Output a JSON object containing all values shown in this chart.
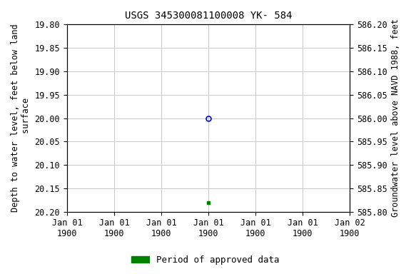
{
  "title": "USGS 345300081100008 YK- 584",
  "ylabel_left": "Depth to water level, feet below land\n surface",
  "ylabel_right": "Groundwater level above NAVD 1988, feet",
  "ylim_left": [
    19.8,
    20.2
  ],
  "ylim_right": [
    585.8,
    586.2
  ],
  "xlim": [
    0,
    6
  ],
  "xtick_positions": [
    0,
    1,
    2,
    3,
    4,
    5,
    6
  ],
  "xtick_labels": [
    "Jan 01\n1900",
    "Jan 01\n1900",
    "Jan 01\n1900",
    "Jan 01\n1900",
    "Jan 01\n1900",
    "Jan 01\n1900",
    "Jan 02\n1900"
  ],
  "data_point_x": 3,
  "data_point_y_circle": 20.0,
  "data_point_y_square": 20.18,
  "circle_color": "blue",
  "square_color": "#008000",
  "background_color": "white",
  "grid_color": "#c8c8c8",
  "legend_label": "Period of approved data",
  "legend_color": "#008000",
  "title_fontsize": 10,
  "axis_label_fontsize": 8.5,
  "tick_fontsize": 8.5,
  "left_yticks": [
    19.8,
    19.85,
    19.9,
    19.95,
    20.0,
    20.05,
    20.1,
    20.15,
    20.2
  ],
  "right_yticks": [
    586.2,
    586.15,
    586.1,
    586.05,
    586.0,
    585.95,
    585.9,
    585.85,
    585.8
  ]
}
